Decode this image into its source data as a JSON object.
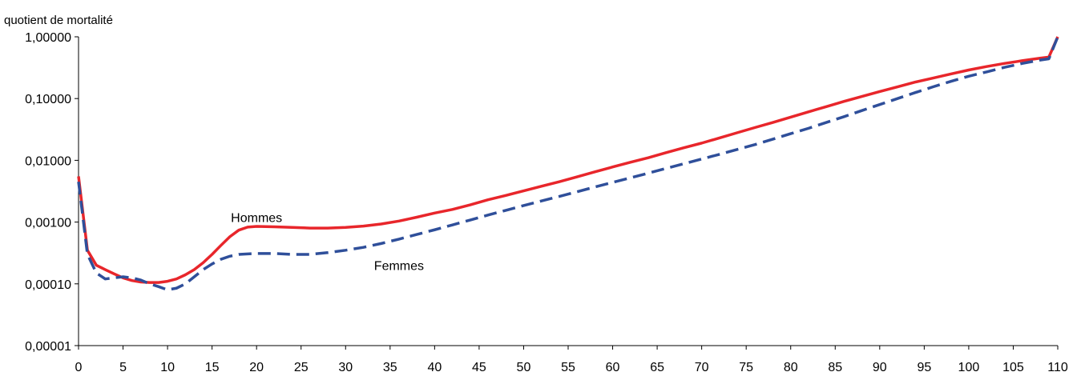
{
  "chart_data": {
    "type": "line",
    "title": "",
    "xlabel": "",
    "ylabel": "quotient de mortalité",
    "yscale": "log",
    "ylim": [
      1e-05,
      1
    ],
    "xlim": [
      0,
      110
    ],
    "grid": false,
    "legend": "none",
    "y_ticks": [
      {
        "value": 1e-05,
        "label": "0,00001"
      },
      {
        "value": 0.0001,
        "label": "0,00010"
      },
      {
        "value": 0.001,
        "label": "0,00100"
      },
      {
        "value": 0.01,
        "label": "0,01000"
      },
      {
        "value": 0.1,
        "label": "0,10000"
      },
      {
        "value": 1,
        "label": "1,00000"
      }
    ],
    "x_ticks": [
      0,
      5,
      10,
      15,
      20,
      25,
      30,
      35,
      40,
      45,
      50,
      55,
      60,
      65,
      70,
      75,
      80,
      85,
      90,
      95,
      100,
      105,
      110
    ],
    "annotations": [
      {
        "text": "Hommes",
        "x": 20,
        "y": 0.0012,
        "series": "Hommes"
      },
      {
        "text": "Femmes",
        "x": 36,
        "y": 0.0002,
        "series": "Femmes"
      }
    ],
    "series": [
      {
        "name": "Hommes",
        "color": "#e8262b",
        "dash": "solid",
        "points": [
          [
            0,
            0.0055
          ],
          [
            1,
            0.00035
          ],
          [
            2,
            0.0002
          ],
          [
            3,
            0.00017
          ],
          [
            4,
            0.000145
          ],
          [
            5,
            0.000125
          ],
          [
            6,
            0.000113
          ],
          [
            7,
            0.000107
          ],
          [
            8,
            0.000105
          ],
          [
            9,
            0.000105
          ],
          [
            10,
            0.00011
          ],
          [
            11,
            0.00012
          ],
          [
            12,
            0.00014
          ],
          [
            13,
            0.00017
          ],
          [
            14,
            0.00022
          ],
          [
            15,
            0.0003
          ],
          [
            16,
            0.00042
          ],
          [
            17,
            0.00058
          ],
          [
            18,
            0.00074
          ],
          [
            19,
            0.00083
          ],
          [
            20,
            0.00085
          ],
          [
            22,
            0.00084
          ],
          [
            24,
            0.00082
          ],
          [
            26,
            0.0008
          ],
          [
            28,
            0.0008
          ],
          [
            30,
            0.00082
          ],
          [
            32,
            0.00086
          ],
          [
            34,
            0.00093
          ],
          [
            36,
            0.00104
          ],
          [
            38,
            0.0012
          ],
          [
            40,
            0.0014
          ],
          [
            42,
            0.0016
          ],
          [
            44,
            0.0019
          ],
          [
            46,
            0.0023
          ],
          [
            48,
            0.0027
          ],
          [
            50,
            0.0032
          ],
          [
            52,
            0.0038
          ],
          [
            54,
            0.0045
          ],
          [
            56,
            0.0054
          ],
          [
            58,
            0.0065
          ],
          [
            60,
            0.0078
          ],
          [
            62,
            0.0093
          ],
          [
            64,
            0.011
          ],
          [
            66,
            0.0133
          ],
          [
            68,
            0.016
          ],
          [
            70,
            0.019
          ],
          [
            72,
            0.023
          ],
          [
            74,
            0.028
          ],
          [
            76,
            0.034
          ],
          [
            78,
            0.041
          ],
          [
            80,
            0.05
          ],
          [
            82,
            0.061
          ],
          [
            84,
            0.074
          ],
          [
            86,
            0.09
          ],
          [
            88,
            0.108
          ],
          [
            90,
            0.13
          ],
          [
            92,
            0.155
          ],
          [
            94,
            0.185
          ],
          [
            96,
            0.215
          ],
          [
            98,
            0.25
          ],
          [
            100,
            0.29
          ],
          [
            102,
            0.33
          ],
          [
            104,
            0.37
          ],
          [
            106,
            0.41
          ],
          [
            108,
            0.45
          ],
          [
            109,
            0.47
          ],
          [
            110,
            1.0
          ]
        ]
      },
      {
        "name": "Femmes",
        "color": "#2f4f9a",
        "dash": "dashed",
        "points": [
          [
            0,
            0.0045
          ],
          [
            1,
            0.0003
          ],
          [
            2,
            0.00015
          ],
          [
            3,
            0.00012
          ],
          [
            4,
            0.000125
          ],
          [
            5,
            0.00013
          ],
          [
            6,
            0.000125
          ],
          [
            7,
            0.000115
          ],
          [
            8,
            0.0001
          ],
          [
            9,
            9e-05
          ],
          [
            10,
            8e-05
          ],
          [
            11,
            8.5e-05
          ],
          [
            12,
            0.0001
          ],
          [
            13,
            0.00013
          ],
          [
            14,
            0.00017
          ],
          [
            15,
            0.00021
          ],
          [
            16,
            0.00025
          ],
          [
            17,
            0.00028
          ],
          [
            18,
            0.0003
          ],
          [
            20,
            0.00031
          ],
          [
            22,
            0.00031
          ],
          [
            24,
            0.0003
          ],
          [
            26,
            0.0003
          ],
          [
            28,
            0.00032
          ],
          [
            30,
            0.00035
          ],
          [
            32,
            0.00039
          ],
          [
            34,
            0.00045
          ],
          [
            36,
            0.00053
          ],
          [
            38,
            0.00063
          ],
          [
            40,
            0.00075
          ],
          [
            42,
            0.0009
          ],
          [
            44,
            0.00108
          ],
          [
            46,
            0.0013
          ],
          [
            48,
            0.00155
          ],
          [
            50,
            0.00185
          ],
          [
            52,
            0.0022
          ],
          [
            54,
            0.0026
          ],
          [
            56,
            0.0031
          ],
          [
            58,
            0.0037
          ],
          [
            60,
            0.0044
          ],
          [
            62,
            0.0052
          ],
          [
            64,
            0.0062
          ],
          [
            66,
            0.0074
          ],
          [
            68,
            0.0088
          ],
          [
            70,
            0.0105
          ],
          [
            72,
            0.0125
          ],
          [
            74,
            0.015
          ],
          [
            76,
            0.018
          ],
          [
            78,
            0.022
          ],
          [
            80,
            0.027
          ],
          [
            82,
            0.033
          ],
          [
            84,
            0.041
          ],
          [
            86,
            0.051
          ],
          [
            88,
            0.064
          ],
          [
            90,
            0.08
          ],
          [
            92,
            0.1
          ],
          [
            94,
            0.125
          ],
          [
            96,
            0.155
          ],
          [
            98,
            0.19
          ],
          [
            100,
            0.23
          ],
          [
            102,
            0.27
          ],
          [
            104,
            0.32
          ],
          [
            106,
            0.37
          ],
          [
            108,
            0.42
          ],
          [
            109,
            0.44
          ],
          [
            110,
            1.0
          ]
        ]
      }
    ]
  }
}
